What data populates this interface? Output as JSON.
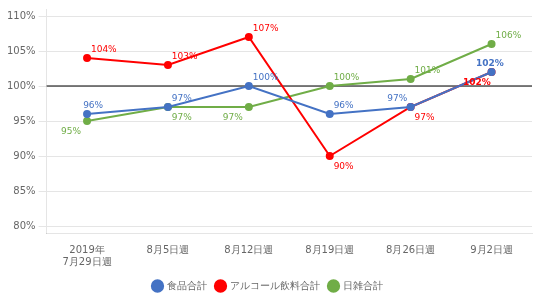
{
  "chart_data": {
    "type": "line",
    "categories": [
      "2019年\n7月29日週",
      "8月5日週",
      "8月12日週",
      "8月19日週",
      "8月26日週",
      "9月2日週"
    ],
    "series": [
      {
        "name": "食品合計",
        "color": "#4472C4",
        "marker": "circle",
        "values": [
          96,
          97,
          100,
          96,
          97,
          102
        ],
        "value_labels": [
          "96%",
          "97%",
          "100%",
          "96%",
          "97%",
          "102%"
        ]
      },
      {
        "name": "アルコール飲料合計",
        "color": "#FF0000",
        "marker": "circle",
        "values": [
          104,
          103,
          107,
          90,
          97,
          102
        ],
        "value_labels": [
          "104%",
          "103%",
          "107%",
          "90%",
          "97%",
          "102%"
        ]
      },
      {
        "name": "日雑合計",
        "color": "#70AD47",
        "marker": "circle",
        "values": [
          95,
          97,
          97,
          100,
          101,
          106
        ],
        "value_labels": [
          "95%",
          "97%",
          "97%",
          "100%",
          "101%",
          "106%"
        ]
      }
    ],
    "ylim": [
      79,
      111
    ],
    "yticks": [
      {
        "value": 80,
        "label": "80%"
      },
      {
        "value": 85,
        "label": "85%"
      },
      {
        "value": 90,
        "label": "90%"
      },
      {
        "value": 95,
        "label": "95%"
      },
      {
        "value": 100,
        "label": "100%"
      },
      {
        "value": 105,
        "label": "105%"
      },
      {
        "value": 110,
        "label": "110%"
      }
    ],
    "grid": "y",
    "data_labels": true,
    "legend": "bottom",
    "reference_line": {
      "y": 100,
      "color": "#000000"
    }
  }
}
